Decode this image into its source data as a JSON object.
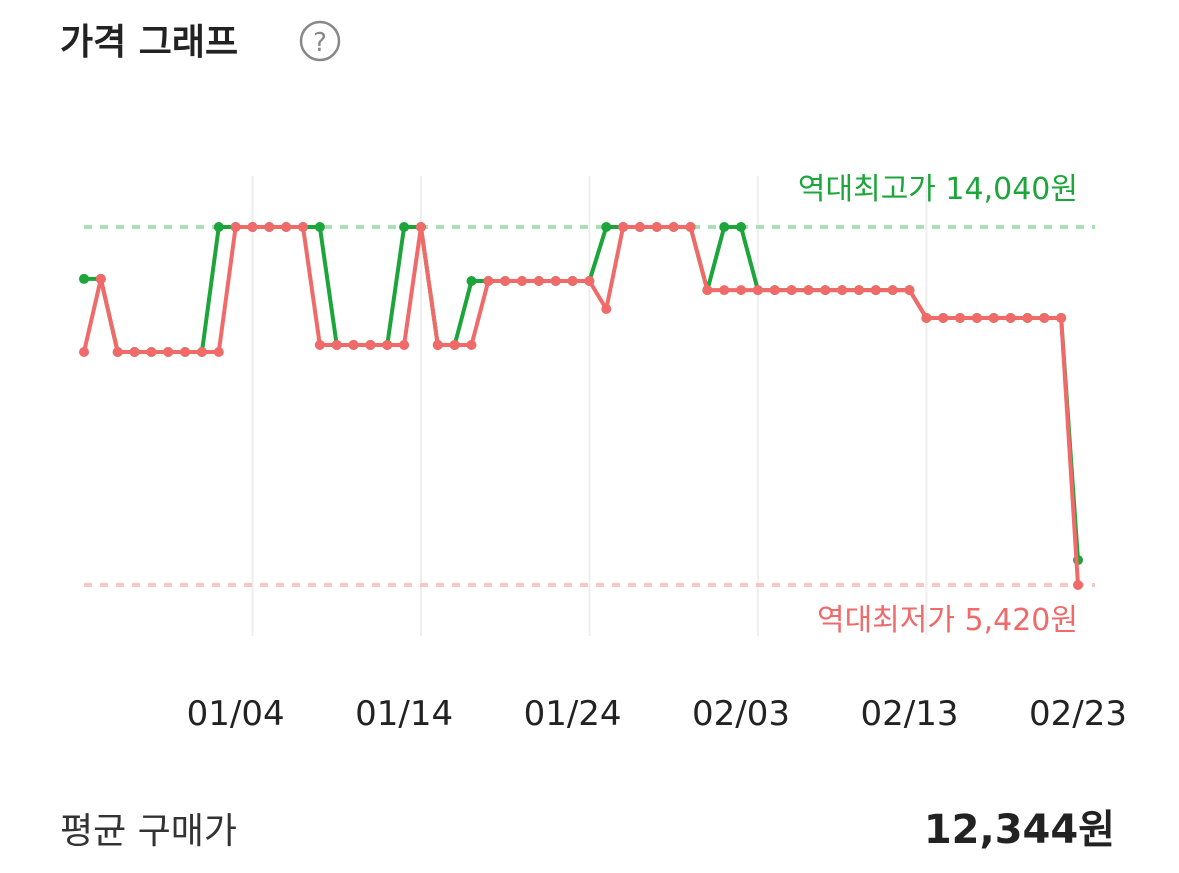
{
  "title": "가격 그래프",
  "help_icon": "?",
  "chart_data": {
    "type": "line",
    "categories": [
      null,
      null,
      null,
      null,
      null,
      null,
      null,
      null,
      null,
      "01/04",
      null,
      null,
      null,
      null,
      null,
      null,
      null,
      null,
      null,
      "01/14",
      null,
      null,
      null,
      null,
      null,
      null,
      null,
      null,
      null,
      "01/24",
      null,
      null,
      null,
      null,
      null,
      null,
      null,
      null,
      null,
      "02/03",
      null,
      null,
      null,
      null,
      null,
      null,
      null,
      null,
      null,
      "02/13",
      null,
      null,
      null,
      null,
      null,
      null,
      null,
      null,
      null,
      "02/23"
    ],
    "series": [
      {
        "color": "#1ca53a",
        "values": [
          12790,
          12790,
          11030,
          11030,
          11030,
          11030,
          11030,
          11030,
          14040,
          14040,
          14040,
          14040,
          14040,
          14040,
          14040,
          11200,
          11200,
          11200,
          11200,
          14040,
          14040,
          11200,
          11200,
          12740,
          12740,
          12740,
          12740,
          12740,
          12740,
          12740,
          12740,
          14040,
          14040,
          14040,
          14040,
          14040,
          14040,
          12520,
          14040,
          14040,
          12520,
          12520,
          12520,
          12520,
          12520,
          12520,
          12520,
          12520,
          12520,
          12520,
          11850,
          11850,
          11850,
          11850,
          11850,
          11850,
          11850,
          11850,
          11850,
          6020
        ]
      },
      {
        "color": "#f06a6a",
        "values": [
          11030,
          12790,
          11030,
          11030,
          11030,
          11030,
          11030,
          11030,
          11030,
          14040,
          14040,
          14040,
          14040,
          14040,
          11200,
          11200,
          11200,
          11200,
          11200,
          11200,
          14040,
          11200,
          11200,
          11200,
          12740,
          12740,
          12740,
          12740,
          12740,
          12740,
          12740,
          12065,
          14040,
          14040,
          14040,
          14040,
          14040,
          12520,
          12520,
          12520,
          12520,
          12520,
          12520,
          12520,
          12520,
          12520,
          12520,
          12520,
          12520,
          12520,
          11850,
          11850,
          11850,
          11850,
          11850,
          11850,
          11850,
          11850,
          11850,
          5420
        ]
      }
    ],
    "reference_lines": [
      {
        "value": 14040,
        "label": "역대최고가 14,040원",
        "color": "#1ca53a",
        "line_color": "#a9e0b4"
      },
      {
        "value": 5420,
        "label": "역대최저가 5,420원",
        "color": "#f06a6a",
        "line_color": "#f9c6c6"
      }
    ]
  },
  "summary": {
    "label": "평균 구매가",
    "value": "12,344원"
  }
}
